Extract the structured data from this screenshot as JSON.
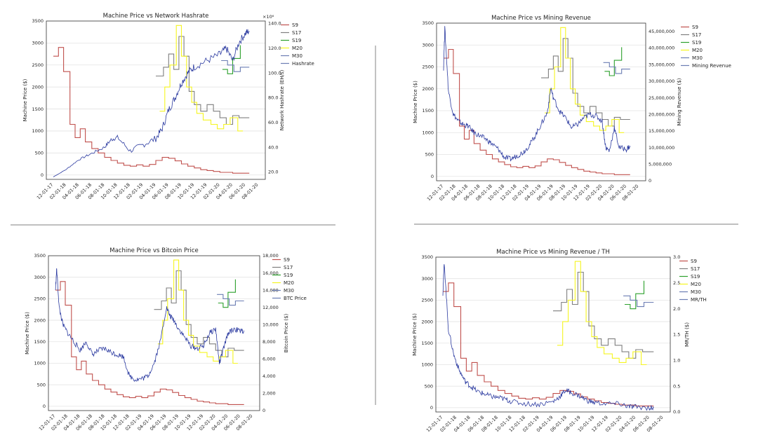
{
  "colors": {
    "S9": "#c0504d",
    "S17": "#7f7f7f",
    "S19": "#2ca02c",
    "M20": "#f5f520",
    "M30": "#6b7db3",
    "secondary": "#2b3aa0",
    "divider": "#999999"
  },
  "x_ticks": [
    "12-01-17",
    "02-01-18",
    "04-01-18",
    "06-01-18",
    "08-01-18",
    "10-01-18",
    "12-01-18",
    "02-01-19",
    "04-01-19",
    "06-01-19",
    "08-01-19",
    "10-01-19",
    "12-01-19",
    "02-01-20",
    "04-01-20",
    "06-01-20",
    "08-01-20"
  ],
  "chart_data": [
    {
      "type": "line",
      "title": "Machine Price vs Network Hashrate",
      "ylabel": "Machine Price ($)",
      "ylabel2": "Network Hashrate (EH/s)",
      "y2_multiplier": "×10⁶",
      "ylim": [
        -100,
        3500
      ],
      "y_ticks": [
        0,
        500,
        1000,
        1500,
        2000,
        2500,
        3000,
        3500
      ],
      "y2lim": [
        14,
        142
      ],
      "y2_ticks": [
        "20.0",
        "40.0",
        "60.0",
        "80.0",
        "100.0",
        "120.0",
        "140.0"
      ],
      "legend": [
        "S9",
        "S17",
        "S19",
        "M20",
        "M30",
        "Hashrate"
      ],
      "secondary_points": [
        [
          0,
          16
        ],
        [
          1,
          22
        ],
        [
          2,
          30
        ],
        [
          3,
          35
        ],
        [
          4,
          40
        ],
        [
          4.5,
          46
        ],
        [
          5,
          48
        ],
        [
          6,
          37
        ],
        [
          7,
          42
        ],
        [
          8,
          47
        ],
        [
          8.5,
          55
        ],
        [
          9,
          70
        ],
        [
          9.5,
          80
        ],
        [
          10,
          92
        ],
        [
          10.5,
          100
        ],
        [
          11,
          105
        ],
        [
          12,
          110
        ],
        [
          13,
          115
        ],
        [
          13.5,
          120
        ],
        [
          14,
          110
        ],
        [
          14.5,
          125
        ],
        [
          15,
          132
        ],
        [
          15.3,
          134
        ]
      ]
    },
    {
      "type": "line",
      "title": "Machine Price vs Mining Revenue",
      "ylabel": "Machine Price ($)",
      "ylabel2": "Mining Revenue ($)",
      "ylim": [
        -100,
        3500
      ],
      "y_ticks": [
        0,
        500,
        1000,
        1500,
        2000,
        2500,
        3000,
        3500
      ],
      "y2lim": [
        0,
        47500000
      ],
      "y2_ticks": [
        "0",
        "5,000,000",
        "10,000,000",
        "15,000,000",
        "20,000,000",
        "25,000,000",
        "30,000,000",
        "35,000,000",
        "40,000,000",
        "45,000,000"
      ],
      "legend": [
        "S9",
        "S17",
        "S19",
        "M20",
        "M30",
        "Mining Revenue"
      ],
      "secondary_points": [
        [
          0,
          34000000
        ],
        [
          0.1,
          46000000
        ],
        [
          0.4,
          27000000
        ],
        [
          0.8,
          20000000
        ],
        [
          1.2,
          18000000
        ],
        [
          1.6,
          17000000
        ],
        [
          2,
          16500000
        ],
        [
          2.5,
          14500000
        ],
        [
          3,
          13500000
        ],
        [
          3.5,
          12500000
        ],
        [
          4,
          11000000
        ],
        [
          4.5,
          9500000
        ],
        [
          5,
          7000000
        ],
        [
          5.5,
          6500000
        ],
        [
          6,
          7500000
        ],
        [
          6.5,
          8500000
        ],
        [
          7,
          10500000
        ],
        [
          7.5,
          13500000
        ],
        [
          8,
          17000000
        ],
        [
          8.5,
          20500000
        ],
        [
          8.8,
          28000000
        ],
        [
          9,
          25000000
        ],
        [
          9.5,
          21000000
        ],
        [
          10,
          19000000
        ],
        [
          10.5,
          16000000
        ],
        [
          11,
          17000000
        ],
        [
          11.5,
          19000000
        ],
        [
          12,
          20000000
        ],
        [
          12.5,
          19500000
        ],
        [
          13,
          18000000
        ],
        [
          13.3,
          10000000
        ],
        [
          13.6,
          9000000
        ],
        [
          14,
          16000000
        ],
        [
          14.4,
          10000000
        ],
        [
          15,
          9500000
        ],
        [
          15.3,
          10500000
        ]
      ]
    },
    {
      "type": "line",
      "title": "Machine Price vs Bitcoin Price",
      "ylabel": "Machine Price ($)",
      "ylabel2": "Bitcoin Price ($)",
      "ylim": [
        -100,
        3500
      ],
      "y_ticks": [
        0,
        500,
        1000,
        1500,
        2000,
        2500,
        3000,
        3500
      ],
      "y2lim": [
        0,
        18000
      ],
      "y2_ticks": [
        "0",
        "2,000",
        "4,000",
        "6,000",
        "8,000",
        "10,000",
        "12,000",
        "14,000",
        "16,000",
        "18,000"
      ],
      "legend": [
        "S9",
        "S17",
        "S19",
        "M20",
        "M30",
        "BTC Price"
      ],
      "secondary_points": [
        [
          0,
          14000
        ],
        [
          0.1,
          16500
        ],
        [
          0.3,
          12000
        ],
        [
          0.6,
          10000
        ],
        [
          1,
          9000
        ],
        [
          1.5,
          8000
        ],
        [
          2,
          7000
        ],
        [
          2.5,
          8000
        ],
        [
          3,
          6500
        ],
        [
          3.5,
          7000
        ],
        [
          4,
          7200
        ],
        [
          4.5,
          6800
        ],
        [
          5,
          6500
        ],
        [
          5.5,
          6300
        ],
        [
          6,
          4000
        ],
        [
          6.5,
          3600
        ],
        [
          7,
          3700
        ],
        [
          7.5,
          4000
        ],
        [
          8,
          5500
        ],
        [
          8.5,
          8000
        ],
        [
          9,
          12000
        ],
        [
          9.3,
          11000
        ],
        [
          9.6,
          10500
        ],
        [
          10,
          9500
        ],
        [
          10.5,
          8500
        ],
        [
          11,
          7500
        ],
        [
          11.5,
          7200
        ],
        [
          12,
          7500
        ],
        [
          12.5,
          9000
        ],
        [
          13,
          9500
        ],
        [
          13.3,
          5500
        ],
        [
          13.6,
          7000
        ],
        [
          14,
          9000
        ],
        [
          14.5,
          9500
        ],
        [
          15,
          9200
        ],
        [
          15.3,
          9300
        ]
      ]
    },
    {
      "type": "line",
      "title": "Machine Price vs Mining Revenue / TH",
      "ylabel": "Machine Price ($)",
      "ylabel2": "MR/TH ($)",
      "ylim": [
        -100,
        3500
      ],
      "y_ticks": [
        0,
        500,
        1000,
        1500,
        2000,
        2500,
        3000,
        3500
      ],
      "y2lim": [
        0,
        3.0
      ],
      "y2_ticks": [
        "0.0",
        "0.5",
        "1.0",
        "1.5",
        "2.0",
        "2.5",
        "3.0"
      ],
      "legend": [
        "S9",
        "S17",
        "S19",
        "M20",
        "M30",
        "MR/TH"
      ],
      "secondary_points": [
        [
          0,
          2.3
        ],
        [
          0.1,
          2.9
        ],
        [
          0.4,
          1.6
        ],
        [
          0.8,
          1.1
        ],
        [
          1.2,
          0.8
        ],
        [
          1.6,
          0.6
        ],
        [
          2,
          0.5
        ],
        [
          2.5,
          0.4
        ],
        [
          3,
          0.35
        ],
        [
          3.5,
          0.3
        ],
        [
          4,
          0.28
        ],
        [
          4.5,
          0.25
        ],
        [
          5,
          0.2
        ],
        [
          6,
          0.16
        ],
        [
          7,
          0.15
        ],
        [
          8,
          0.2
        ],
        [
          8.5,
          0.3
        ],
        [
          8.9,
          0.42
        ],
        [
          9.3,
          0.38
        ],
        [
          10,
          0.3
        ],
        [
          10.5,
          0.22
        ],
        [
          11,
          0.18
        ],
        [
          12,
          0.16
        ],
        [
          13,
          0.15
        ],
        [
          13.5,
          0.1
        ],
        [
          14,
          0.1
        ],
        [
          15,
          0.08
        ],
        [
          15.3,
          0.08
        ]
      ]
    }
  ],
  "machine_series": {
    "S9": [
      [
        0,
        2700
      ],
      [
        0.4,
        2700
      ],
      [
        0.4,
        2900
      ],
      [
        0.8,
        2900
      ],
      [
        0.8,
        2350
      ],
      [
        1.3,
        2350
      ],
      [
        1.3,
        1150
      ],
      [
        1.7,
        1150
      ],
      [
        1.7,
        850
      ],
      [
        2.1,
        850
      ],
      [
        2.1,
        1050
      ],
      [
        2.5,
        1050
      ],
      [
        2.5,
        750
      ],
      [
        3,
        750
      ],
      [
        3,
        600
      ],
      [
        3.5,
        600
      ],
      [
        3.5,
        500
      ],
      [
        4,
        500
      ],
      [
        4,
        400
      ],
      [
        4.5,
        400
      ],
      [
        4.5,
        330
      ],
      [
        5,
        330
      ],
      [
        5,
        270
      ],
      [
        5.5,
        270
      ],
      [
        5.5,
        220
      ],
      [
        6,
        220
      ],
      [
        6,
        200
      ],
      [
        6.5,
        200
      ],
      [
        6.5,
        230
      ],
      [
        7,
        230
      ],
      [
        7,
        200
      ],
      [
        7.5,
        200
      ],
      [
        7.5,
        240
      ],
      [
        8,
        240
      ],
      [
        8,
        330
      ],
      [
        8.5,
        330
      ],
      [
        8.5,
        400
      ],
      [
        9,
        400
      ],
      [
        9,
        380
      ],
      [
        9.5,
        380
      ],
      [
        9.5,
        320
      ],
      [
        10,
        320
      ],
      [
        10,
        250
      ],
      [
        10.5,
        250
      ],
      [
        10.5,
        200
      ],
      [
        11,
        200
      ],
      [
        11,
        160
      ],
      [
        11.5,
        160
      ],
      [
        11.5,
        120
      ],
      [
        12,
        120
      ],
      [
        12,
        100
      ],
      [
        12.5,
        100
      ],
      [
        12.5,
        80
      ],
      [
        13,
        80
      ],
      [
        13,
        60
      ],
      [
        14,
        60
      ],
      [
        14,
        40
      ],
      [
        15.3,
        40
      ]
    ],
    "S17": [
      [
        8,
        2250
      ],
      [
        8.6,
        2250
      ],
      [
        8.6,
        2450
      ],
      [
        9,
        2450
      ],
      [
        9,
        2750
      ],
      [
        9.4,
        2750
      ],
      [
        9.4,
        2400
      ],
      [
        9.8,
        2400
      ],
      [
        9.8,
        3150
      ],
      [
        10.2,
        3150
      ],
      [
        10.2,
        2700
      ],
      [
        10.6,
        2700
      ],
      [
        10.6,
        1900
      ],
      [
        11,
        1900
      ],
      [
        11,
        1600
      ],
      [
        11.5,
        1600
      ],
      [
        11.5,
        1450
      ],
      [
        12,
        1450
      ],
      [
        12,
        1600
      ],
      [
        12.5,
        1600
      ],
      [
        12.5,
        1450
      ],
      [
        13,
        1450
      ],
      [
        13,
        1300
      ],
      [
        13.5,
        1300
      ],
      [
        13.5,
        1150
      ],
      [
        14,
        1150
      ],
      [
        14,
        1350
      ],
      [
        14.5,
        1350
      ],
      [
        14.5,
        1300
      ],
      [
        15.3,
        1300
      ]
    ],
    "S19": [
      [
        13.2,
        2400
      ],
      [
        13.6,
        2400
      ],
      [
        13.6,
        2300
      ],
      [
        14,
        2300
      ],
      [
        14,
        2650
      ],
      [
        14.6,
        2650
      ],
      [
        14.6,
        2950
      ]
    ],
    "M20": [
      [
        8.3,
        1450
      ],
      [
        8.7,
        1450
      ],
      [
        8.7,
        2000
      ],
      [
        9.1,
        2000
      ],
      [
        9.1,
        2500
      ],
      [
        9.6,
        2500
      ],
      [
        9.6,
        3400
      ],
      [
        10,
        3400
      ],
      [
        10,
        2700
      ],
      [
        10.4,
        2700
      ],
      [
        10.4,
        2000
      ],
      [
        10.8,
        2000
      ],
      [
        10.8,
        1650
      ],
      [
        11.2,
        1650
      ],
      [
        11.2,
        1400
      ],
      [
        11.7,
        1400
      ],
      [
        11.7,
        1250
      ],
      [
        12.3,
        1250
      ],
      [
        12.3,
        1150
      ],
      [
        12.8,
        1150
      ],
      [
        12.8,
        1050
      ],
      [
        13.3,
        1050
      ],
      [
        13.3,
        1150
      ],
      [
        13.8,
        1150
      ],
      [
        13.8,
        1300
      ],
      [
        14.4,
        1300
      ],
      [
        14.4,
        1000
      ],
      [
        14.8,
        1000
      ]
    ],
    "M30": [
      [
        13.1,
        2600
      ],
      [
        13.6,
        2600
      ],
      [
        13.6,
        2500
      ],
      [
        14.1,
        2500
      ],
      [
        14.1,
        2350
      ],
      [
        14.6,
        2350
      ],
      [
        14.6,
        2450
      ],
      [
        15.3,
        2450
      ]
    ]
  }
}
